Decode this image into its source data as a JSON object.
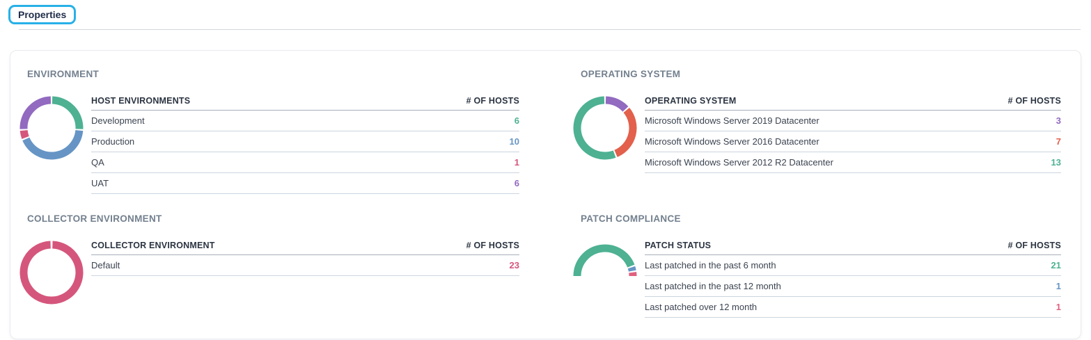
{
  "tabs": {
    "properties": "Properties"
  },
  "colors": {
    "accent_tab_outline": "#27b0e8",
    "green": "#4db192",
    "blue": "#6695c5",
    "pink": "#d5567c",
    "purple": "#926ac0",
    "red": "#e2604c"
  },
  "panels": [
    {
      "title": "ENVIRONMENT",
      "table_headers": {
        "label": "HOST ENVIRONMENTS",
        "value": "# OF HOSTS"
      },
      "chart_data": {
        "type": "donut",
        "total": 23,
        "segments": [
          {
            "label": "Development",
            "value": 6,
            "color": "#4db192"
          },
          {
            "label": "Production",
            "value": 10,
            "color": "#6695c5"
          },
          {
            "label": "QA",
            "value": 1,
            "color": "#d5567c"
          },
          {
            "label": "UAT",
            "value": 6,
            "color": "#926ac0"
          }
        ]
      }
    },
    {
      "title": "OPERATING SYSTEM",
      "table_headers": {
        "label": "OPERATING SYSTEM",
        "value": "# OF HOSTS"
      },
      "chart_data": {
        "type": "donut",
        "total": 23,
        "segments": [
          {
            "label": "Microsoft Windows Server 2019 Datacenter",
            "value": 3,
            "color": "#926ac0"
          },
          {
            "label": "Microsoft Windows Server 2016 Datacenter",
            "value": 7,
            "color": "#e2604c"
          },
          {
            "label": "Microsoft Windows Server 2012 R2 Datacenter",
            "value": 13,
            "color": "#4db192"
          }
        ]
      }
    },
    {
      "title": "COLLECTOR ENVIRONMENT",
      "table_headers": {
        "label": "COLLECTOR ENVIRONMENT",
        "value": "# OF HOSTS"
      },
      "chart_data": {
        "type": "donut",
        "total": 23,
        "segments": [
          {
            "label": "Default",
            "value": 23,
            "color": "#d5567c"
          }
        ]
      }
    },
    {
      "title": "PATCH COMPLIANCE",
      "table_headers": {
        "label": "PATCH STATUS",
        "value": "# OF HOSTS"
      },
      "chart_data": {
        "type": "half-donut",
        "total": 23,
        "segments": [
          {
            "label": "Last patched in the past 6 month",
            "value": 21,
            "color": "#4db192"
          },
          {
            "label": "Last patched in the past 12 month",
            "value": 1,
            "color": "#6695c5"
          },
          {
            "label": "Last patched over 12 month",
            "value": 1,
            "color": "#e0607f"
          }
        ]
      }
    }
  ]
}
